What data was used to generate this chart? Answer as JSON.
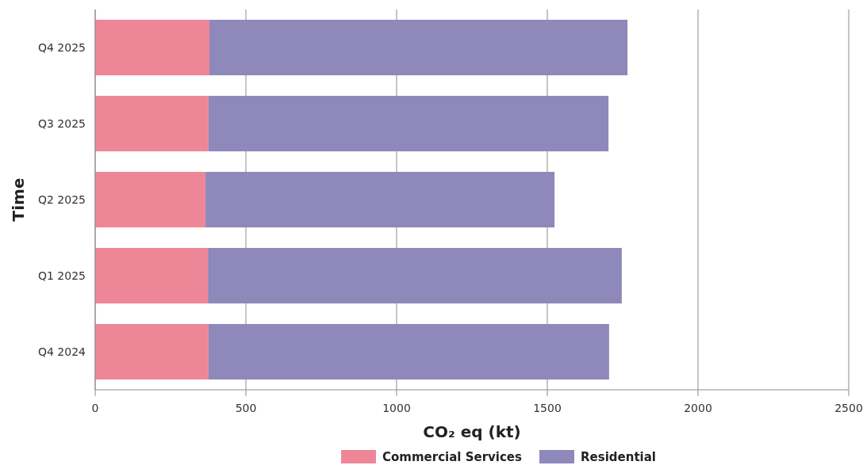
{
  "chart_data": {
    "type": "bar",
    "orientation": "horizontal",
    "stacked": true,
    "xlabel": "CO₂ eq (kt)",
    "ylabel": "Time",
    "categories": [
      "Q4 2025",
      "Q3 2025",
      "Q2 2025",
      "Q1 2025",
      "Q4 2024"
    ],
    "series": [
      {
        "name": "Commercial Services",
        "color": "#ed8798",
        "values": [
          379,
          376,
          366,
          374,
          376
        ]
      },
      {
        "name": "Residential",
        "color": "#8f88bb",
        "values": [
          1387,
          1327,
          1158,
          1373,
          1329
        ]
      }
    ],
    "xlim": [
      0,
      2500
    ],
    "xticks": [
      0,
      500,
      1000,
      1500,
      2000,
      2500
    ],
    "grid": "x",
    "legend": "bottom"
  }
}
